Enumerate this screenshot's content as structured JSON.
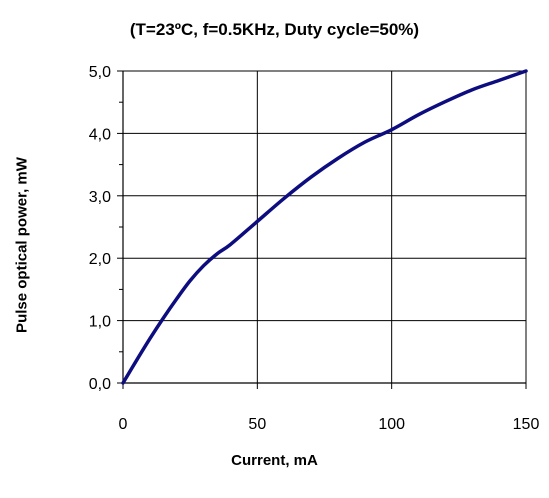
{
  "chart_data": {
    "type": "line",
    "title": "(T=23ºC, f=0.5KHz, Duty cycle=50%)",
    "xlabel": "Current,  mA",
    "ylabel": "Pulse optical  power,  mW",
    "xlim": [
      0,
      150
    ],
    "ylim": [
      0,
      5.0
    ],
    "x_ticks": [
      "0",
      "50",
      "100",
      "150"
    ],
    "y_ticks": [
      "0,0",
      "1,0",
      "2,0",
      "3,0",
      "4,0",
      "5,0"
    ],
    "grid": true,
    "legend": "none",
    "series": [
      {
        "color": "#0d0d80",
        "x": [
          0,
          5,
          10,
          15,
          20,
          25,
          30,
          35,
          40,
          50,
          60,
          70,
          80,
          90,
          100,
          110,
          120,
          130,
          140,
          150
        ],
        "y": [
          0.0,
          0.36,
          0.71,
          1.04,
          1.35,
          1.64,
          1.88,
          2.07,
          2.22,
          2.59,
          2.96,
          3.3,
          3.6,
          3.86,
          4.06,
          4.3,
          4.51,
          4.7,
          4.85,
          5.0
        ]
      }
    ]
  }
}
